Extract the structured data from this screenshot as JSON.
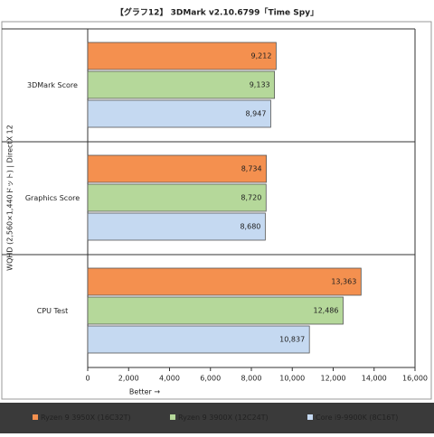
{
  "chart_data": {
    "type": "bar",
    "orientation": "horizontal",
    "title": "【グラフ12】 3DMark v2.10.6799「Time Spy」",
    "y_label": "WQHD (2,560×1,440ドット) | DirectX 12",
    "x_label": "Better →",
    "categories": [
      "3DMark Score",
      "Graphics Score",
      "CPU Test"
    ],
    "series": [
      {
        "name": "Ryzen 9 3950X (16C32T)",
        "color": "#f4904f",
        "values": [
          9212,
          8734,
          13363
        ],
        "value_labels": [
          "9,212",
          "8,734",
          "13,363"
        ]
      },
      {
        "name": "Ryzen 9 3900X (12C24T)",
        "color": "#b5d89a",
        "values": [
          9133,
          8720,
          12486
        ],
        "value_labels": [
          "9,133",
          "8,720",
          "12,486"
        ]
      },
      {
        "name": "Core i9-9900K (8C16T)",
        "color": "#c5d9f1",
        "values": [
          8947,
          8680,
          10837
        ],
        "value_labels": [
          "8,947",
          "8,680",
          "10,837"
        ]
      }
    ],
    "xlim": [
      0,
      16000
    ],
    "xticks": [
      0,
      {
        "value": 2000,
        "label": "2,000"
      },
      {
        "value": 4000,
        "label": "4,000"
      },
      {
        "value": 6000,
        "label": "6,000"
      },
      {
        "value": 8000,
        "label": "8,000"
      },
      {
        "value": 10000,
        "label": "10,000"
      },
      {
        "value": 12000,
        "label": "12,000"
      },
      {
        "value": 14000,
        "label": "14,000"
      },
      {
        "value": 16000,
        "label": "16,000"
      }
    ]
  }
}
